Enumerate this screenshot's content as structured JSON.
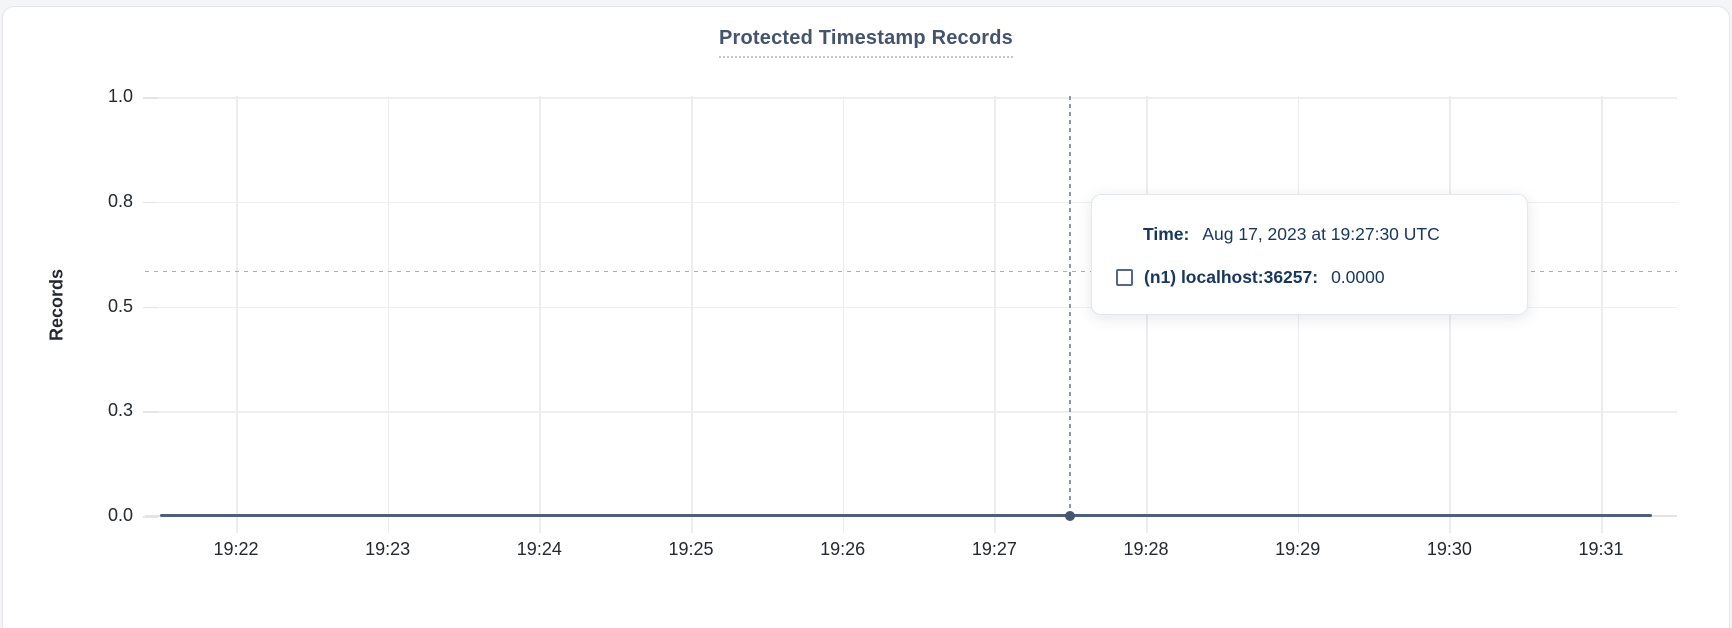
{
  "header": {
    "title": "Protected Timestamp Records"
  },
  "chart_data": {
    "type": "line",
    "title": "Protected Timestamp Records",
    "xlabel": "",
    "ylabel": "Records",
    "ylim": [
      0,
      1
    ],
    "grid": true,
    "legend_position": "none",
    "ytick_labels": [
      "1.0",
      "0.8",
      "0.5",
      "0.3",
      "0.0"
    ],
    "ytick_values": [
      1.0,
      0.75,
      0.5,
      0.25,
      0.0
    ],
    "xtick_labels": [
      "19:22",
      "19:23",
      "19:24",
      "19:25",
      "19:26",
      "19:27",
      "19:28",
      "19:29",
      "19:30",
      "19:31"
    ],
    "series": [
      {
        "name": "(n1) localhost:36257",
        "color": "#4e5f7a",
        "start_time": "19:21:30",
        "end_time": "19:31:20",
        "points": [
          {
            "t": "19:22",
            "v": 0
          },
          {
            "t": "19:23",
            "v": 0
          },
          {
            "t": "19:24",
            "v": 0
          },
          {
            "t": "19:25",
            "v": 0
          },
          {
            "t": "19:26",
            "v": 0
          },
          {
            "t": "19:27",
            "v": 0
          },
          {
            "t": "19:28",
            "v": 0
          },
          {
            "t": "19:29",
            "v": 0
          },
          {
            "t": "19:30",
            "v": 0
          },
          {
            "t": "19:31",
            "v": 0
          }
        ]
      }
    ],
    "hover": {
      "time": "19:27:30",
      "value": 0.0
    }
  },
  "tooltip": {
    "time_label": "Time:",
    "time_value": "Aug 17, 2023 at 19:27:30 UTC",
    "series_label": "(n1) localhost:36257:",
    "series_value": "0.0000"
  },
  "colors": {
    "title": "#44536e",
    "series_line": "#4e5f7a",
    "hover_dot": "#44556e",
    "tooltip_text": "#17375e",
    "gridline": "#ededf0",
    "crosshair": "#8f99a6"
  }
}
